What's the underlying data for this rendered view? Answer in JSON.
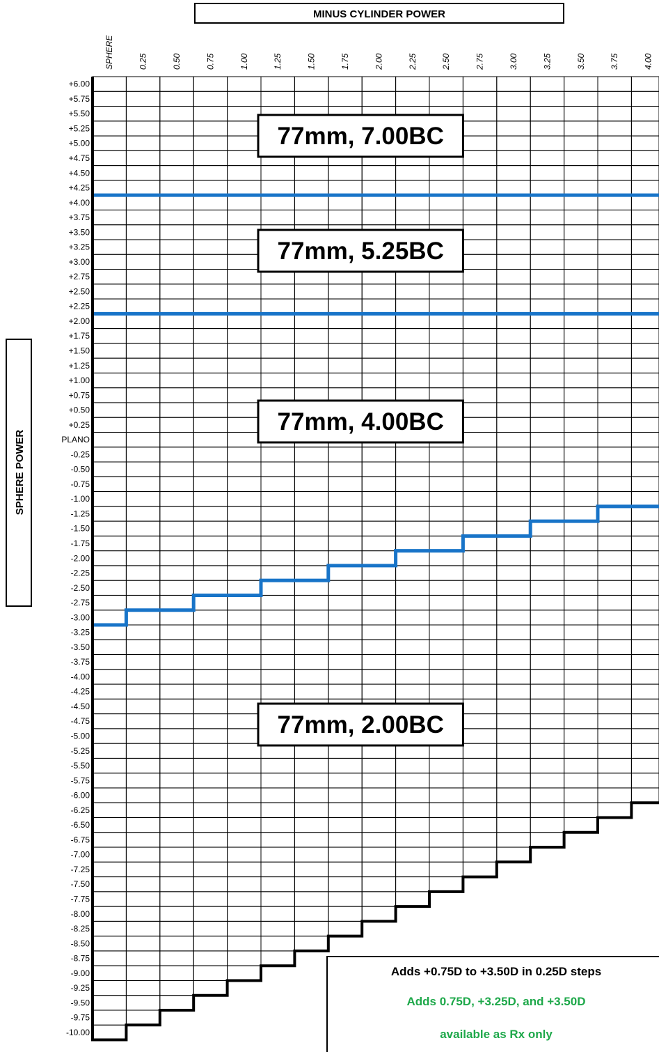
{
  "chart_data": {
    "type": "table",
    "title": "MINUS CYLINDER POWER",
    "ylabel": "SPHERE POWER",
    "columns": [
      "SPHERE",
      "0.25",
      "0.50",
      "0.75",
      "1.00",
      "1.25",
      "1.50",
      "1.75",
      "2.00",
      "2.25",
      "2.50",
      "2.75",
      "3.00",
      "3.25",
      "3.50",
      "3.75",
      "4.00"
    ],
    "rows": [
      "+6.00",
      "+5.75",
      "+5.50",
      "+5.25",
      "+5.00",
      "+4.75",
      "+4.50",
      "+4.25",
      "+4.00",
      "+3.75",
      "+3.50",
      "+3.25",
      "+3.00",
      "+2.75",
      "+2.50",
      "+2.25",
      "+2.00",
      "+1.75",
      "+1.50",
      "+1.25",
      "+1.00",
      "+0.75",
      "+0.50",
      "+0.25",
      "PLANO",
      "-0.25",
      "-0.50",
      "-0.75",
      "-1.00",
      "-1.25",
      "-1.50",
      "-1.75",
      "-2.00",
      "-2.25",
      "-2.50",
      "-2.75",
      "-3.00",
      "-3.25",
      "-3.50",
      "-3.75",
      "-4.00",
      "-4.25",
      "-4.50",
      "-4.75",
      "-5.00",
      "-5.25",
      "-5.50",
      "-5.75",
      "-6.00",
      "-6.25",
      "-6.50",
      "-6.75",
      "-7.00",
      "-7.25",
      "-7.50",
      "-7.75",
      "-8.00",
      "-8.25",
      "-8.50",
      "-8.75",
      "-9.00",
      "-9.25",
      "-9.50",
      "-9.75",
      "-10.00"
    ],
    "zones": [
      {
        "label": "77mm, 7.00BC",
        "from_row": 0,
        "to_row": 7
      },
      {
        "label": "77mm, 5.25BC",
        "from_row": 8,
        "to_row": 15
      },
      {
        "label": "77mm, 4.00BC",
        "from_row": 16,
        "to_row": 29
      },
      {
        "label": "77mm, 2.00BC",
        "from_row": 30,
        "to_row": 64
      }
    ],
    "boundaries": {
      "line_5_25_start_row": 8,
      "line_4_00_start_row": 16,
      "line_2_00_start_row_by_column": [
        37,
        36,
        36,
        35,
        35,
        34,
        34,
        33,
        33,
        32,
        32,
        31,
        31,
        30,
        30,
        29,
        29
      ]
    },
    "coverage_last_row_by_column": [
      64,
      63,
      62,
      61,
      60,
      59,
      58,
      57,
      56,
      55,
      54,
      53,
      52,
      51,
      50,
      49,
      48
    ],
    "colors": {
      "grid": "#000000",
      "boundary_line": "#1874c8",
      "coverage_edge": "#000000",
      "note_green": "#1ea84a"
    }
  },
  "notes": {
    "line1": "Adds +0.75D to +3.50D in 0.25D steps",
    "line2": "Adds 0.75D, +3.25D, and +3.50D",
    "line3": "available as Rx only"
  }
}
